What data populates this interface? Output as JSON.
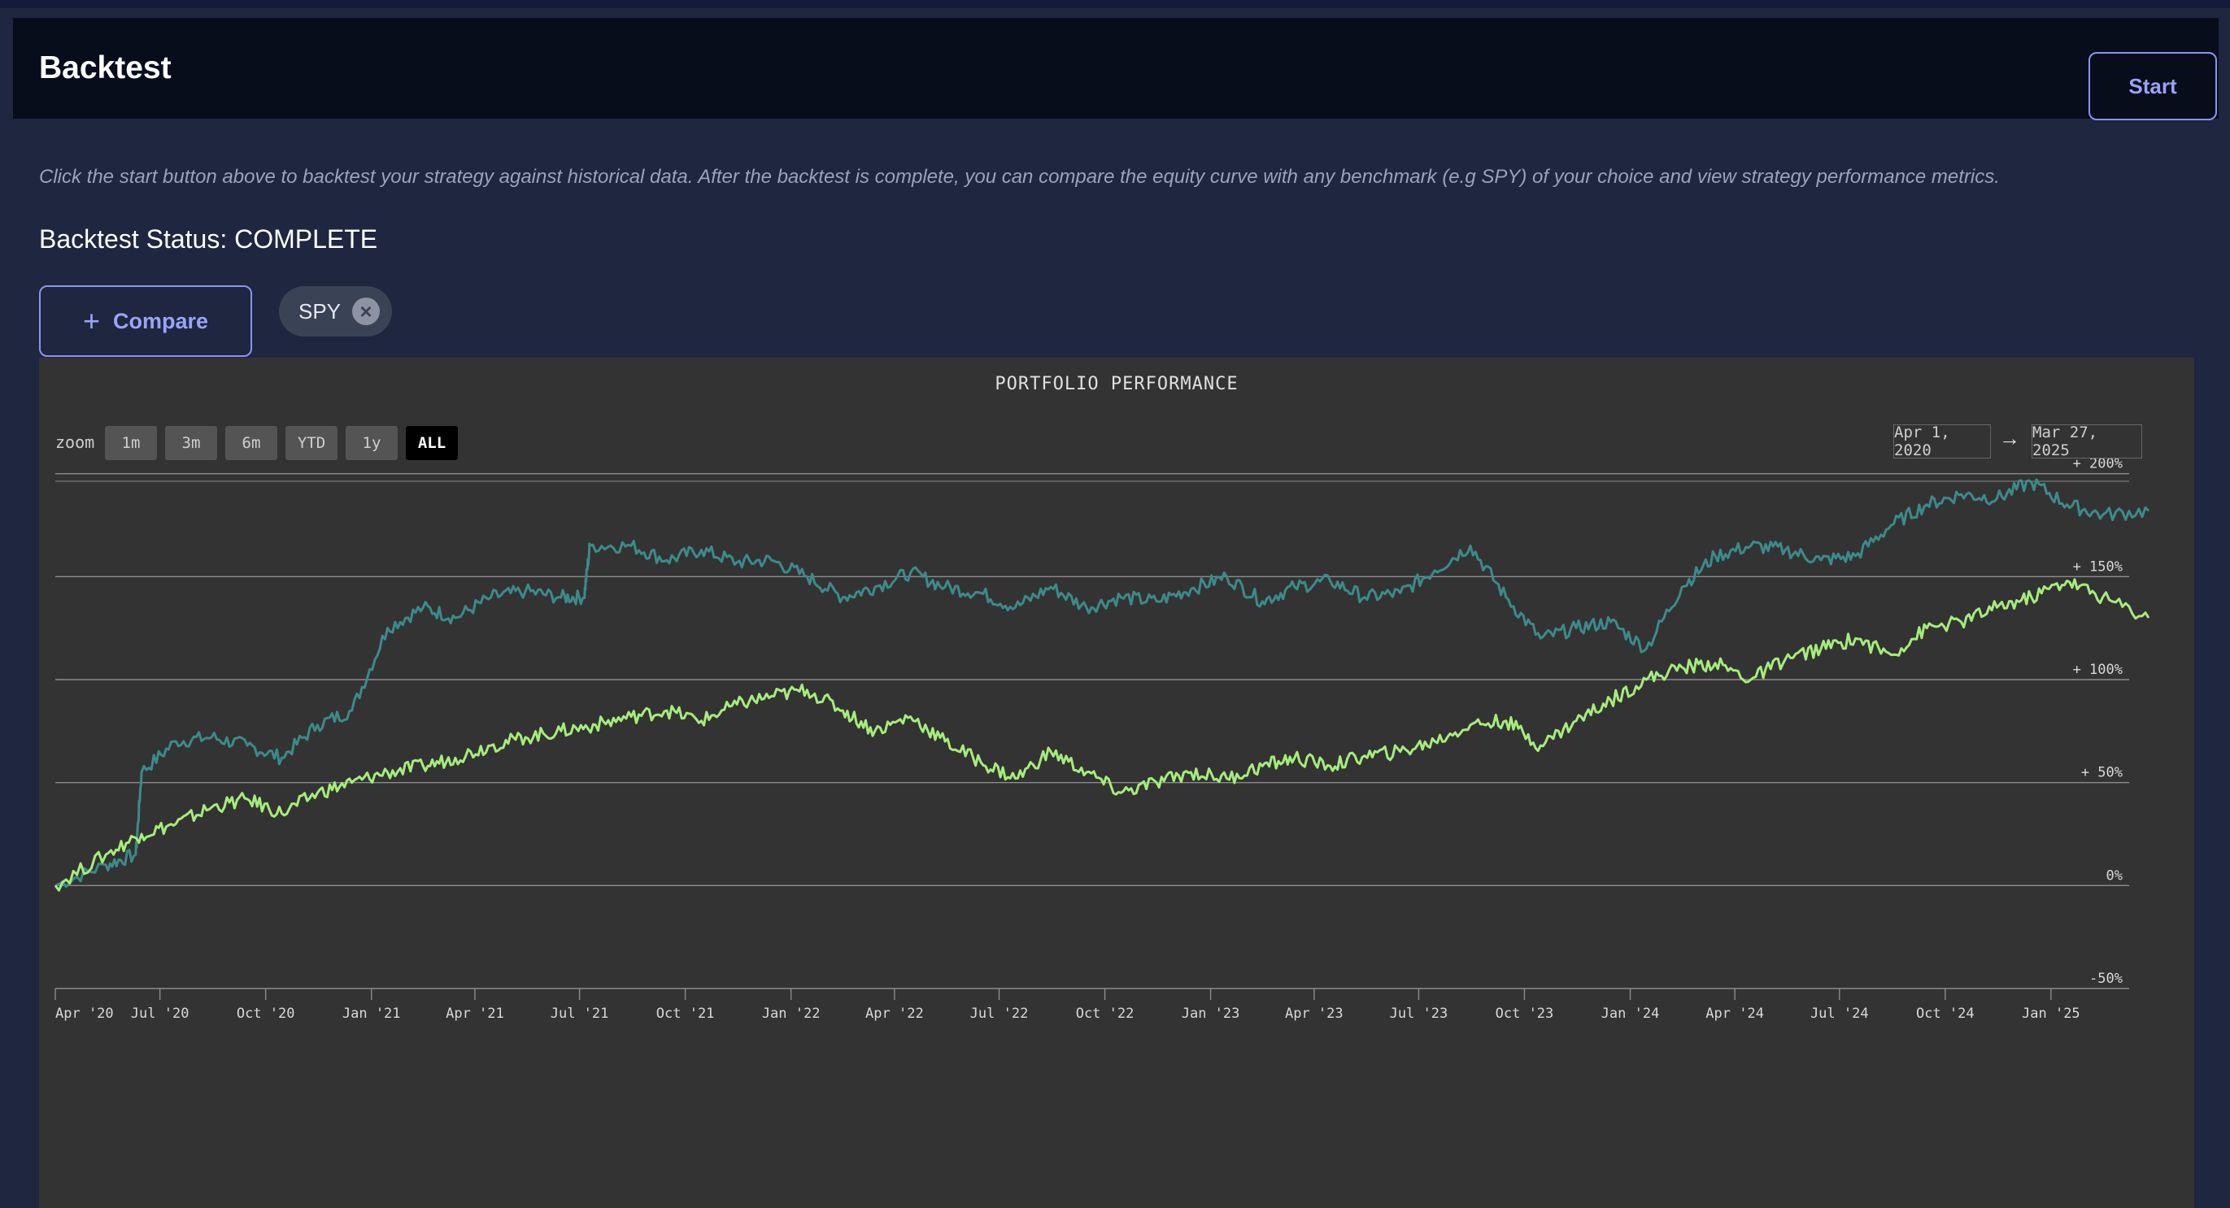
{
  "header": {
    "title": "Backtest",
    "start_label": "Start"
  },
  "intro_text": "Click the start button above to backtest your strategy against historical data. After the backtest is complete, you can compare the equity curve with any benchmark (e.g SPY) of your choice and view strategy performance metrics.",
  "status_text": "Backtest Status: COMPLETE",
  "compare_label": "Compare",
  "benchmark_chip": {
    "label": "SPY"
  },
  "colors": {
    "accent": "#8a94f2",
    "strategy_line": "#3d8a8a",
    "benchmark_line": "#a6ec7c",
    "panel_bg": "#333333"
  },
  "chart_panel": {
    "title": "PORTFOLIO PERFORMANCE",
    "zoom_label": "zoom",
    "zoom_buttons": [
      "1m",
      "3m",
      "6m",
      "YTD",
      "1y",
      "ALL"
    ],
    "zoom_active": "ALL",
    "date_from": "Apr 1, 2020",
    "date_arrow": "→",
    "date_to": "Mar 27, 2025"
  },
  "chart_data": {
    "type": "line",
    "title": "PORTFOLIO PERFORMANCE",
    "x_ticks": [
      "Apr '20",
      "Jul '20",
      "Oct '20",
      "Jan '21",
      "Apr '21",
      "Jul '21",
      "Oct '21",
      "Jan '22",
      "Apr '22",
      "Jul '22",
      "Oct '22",
      "Jan '23",
      "Apr '23",
      "Jul '23",
      "Oct '23",
      "Jan '24",
      "Apr '24",
      "Jul '24",
      "Oct '24",
      "Jan '25"
    ],
    "y_ticks": [
      "-50%",
      "0%",
      "+ 50%",
      "+ 100%",
      "+ 150%",
      "+ 200%"
    ],
    "ylim": [
      -50,
      250
    ],
    "xlim": [
      "2020-04-01",
      "2025-03-27"
    ],
    "grid": true,
    "series": [
      {
        "x": [
          "2020-04-01",
          "2020-05-15",
          "2020-06-10",
          "2020-06-15",
          "2020-07-15",
          "2020-08-15",
          "2020-09-15",
          "2020-10-15",
          "2020-11-15",
          "2020-12-15",
          "2021-01-15",
          "2021-02-15",
          "2021-03-15",
          "2021-04-15",
          "2021-05-15",
          "2021-06-15",
          "2021-07-05",
          "2021-07-10",
          "2021-08-15",
          "2021-09-15",
          "2021-10-15",
          "2021-11-15",
          "2021-12-15",
          "2022-01-15",
          "2022-02-15",
          "2022-03-15",
          "2022-04-15",
          "2022-05-15",
          "2022-06-15",
          "2022-07-15",
          "2022-08-15",
          "2022-09-15",
          "2022-10-15",
          "2022-11-15",
          "2022-12-15",
          "2023-01-15",
          "2023-02-15",
          "2023-03-15",
          "2023-04-15",
          "2023-05-15",
          "2023-06-15",
          "2023-07-15",
          "2023-08-15",
          "2023-09-15",
          "2023-10-15",
          "2023-11-15",
          "2023-12-15",
          "2024-01-15",
          "2024-02-15",
          "2024-03-15",
          "2024-04-15",
          "2024-05-15",
          "2024-06-15",
          "2024-07-15",
          "2024-08-15",
          "2024-09-15",
          "2024-10-15",
          "2024-11-15",
          "2024-12-15",
          "2025-01-15",
          "2025-02-15",
          "2025-03-27"
        ],
        "values": [
          0,
          10,
          15,
          55,
          70,
          72,
          68,
          62,
          78,
          85,
          125,
          135,
          130,
          140,
          143,
          140,
          140,
          165,
          165,
          158,
          163,
          157,
          158,
          150,
          140,
          145,
          152,
          145,
          142,
          135,
          145,
          135,
          140,
          138,
          144,
          150,
          138,
          145,
          148,
          140,
          142,
          153,
          165,
          140,
          120,
          125,
          128,
          115,
          145,
          160,
          165,
          163,
          158,
          160,
          175,
          185,
          190,
          188,
          196,
          185,
          180,
          182
        ]
      },
      {
        "x": [
          "2020-04-01",
          "2020-05-15",
          "2020-06-15",
          "2020-07-15",
          "2020-08-15",
          "2020-09-15",
          "2020-10-15",
          "2020-11-15",
          "2020-12-15",
          "2021-01-15",
          "2021-02-15",
          "2021-03-15",
          "2021-04-15",
          "2021-05-15",
          "2021-06-15",
          "2021-07-15",
          "2021-08-15",
          "2021-09-15",
          "2021-10-15",
          "2021-11-15",
          "2021-12-15",
          "2022-01-15",
          "2022-02-15",
          "2022-03-15",
          "2022-04-15",
          "2022-05-15",
          "2022-06-15",
          "2022-07-15",
          "2022-08-15",
          "2022-09-15",
          "2022-10-15",
          "2022-11-15",
          "2022-12-15",
          "2023-01-15",
          "2023-02-15",
          "2023-03-15",
          "2023-04-15",
          "2023-05-15",
          "2023-06-15",
          "2023-07-15",
          "2023-08-15",
          "2023-09-15",
          "2023-10-15",
          "2023-11-15",
          "2023-12-15",
          "2024-01-15",
          "2024-02-15",
          "2024-03-15",
          "2024-04-15",
          "2024-05-15",
          "2024-06-15",
          "2024-07-15",
          "2024-08-15",
          "2024-09-15",
          "2024-10-15",
          "2024-11-15",
          "2024-12-15",
          "2025-01-15",
          "2025-02-15",
          "2025-03-27"
        ],
        "values": [
          0,
          15,
          25,
          30,
          38,
          42,
          35,
          45,
          50,
          55,
          58,
          62,
          68,
          72,
          75,
          78,
          82,
          85,
          80,
          88,
          92,
          95,
          85,
          75,
          82,
          70,
          60,
          52,
          65,
          55,
          45,
          50,
          55,
          52,
          58,
          62,
          58,
          63,
          65,
          70,
          78,
          80,
          68,
          80,
          90,
          100,
          106,
          108,
          100,
          110,
          115,
          120,
          112,
          125,
          128,
          135,
          140,
          148,
          140,
          130
        ]
      }
    ]
  }
}
